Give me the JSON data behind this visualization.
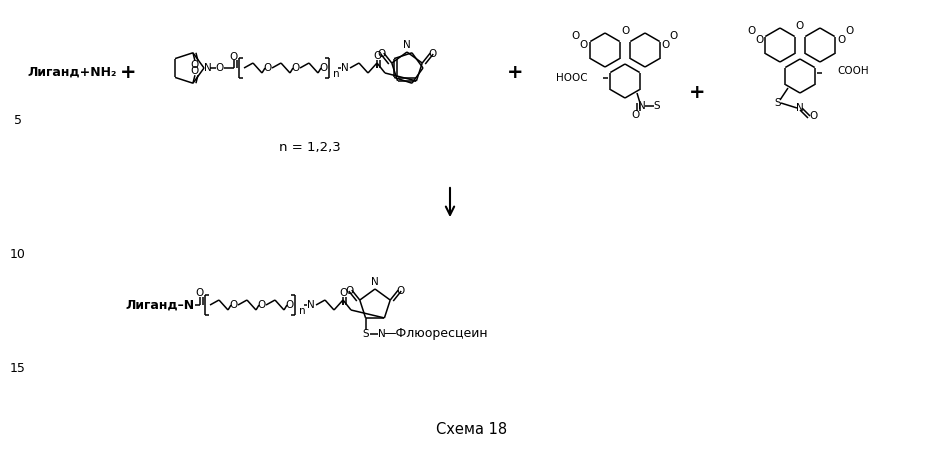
{
  "bg_color": "#ffffff",
  "scheme_label": "Схема 18",
  "ligand_nh2": "Лиганд+NH₂",
  "ligand_n": "Лиганд–N",
  "n_label": "n = 1,2,3",
  "fluorescein": "Флюоресцеин",
  "hooc": "HOOC",
  "cooh": "COOH",
  "num5": "5",
  "num10": "10",
  "num15": "15"
}
